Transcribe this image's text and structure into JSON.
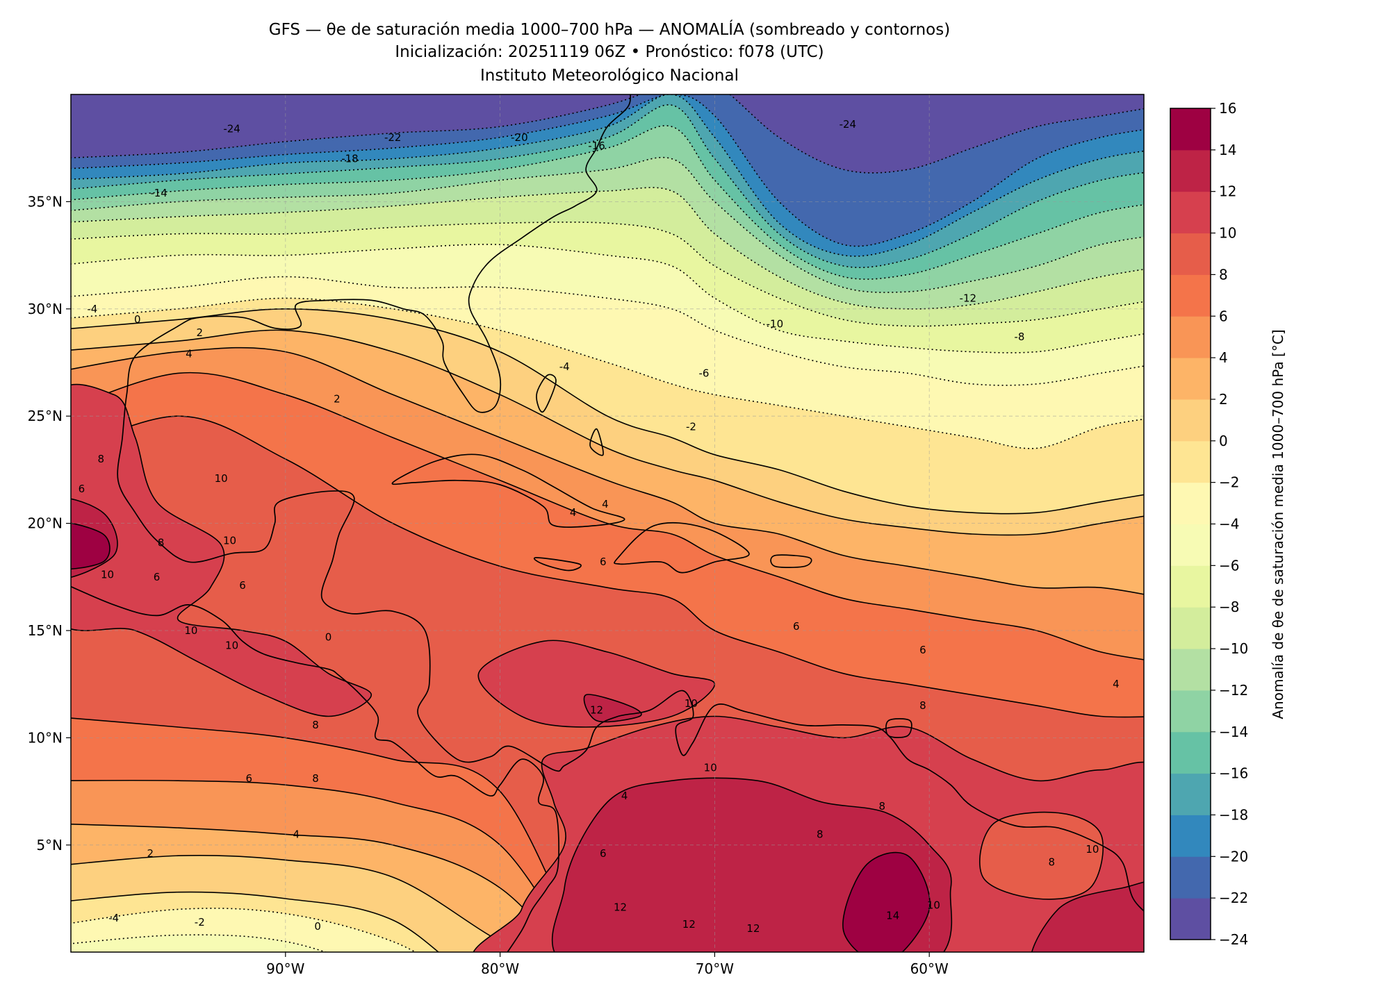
{
  "title": {
    "line1": "GFS — θe de saturación media 1000–700 hPa — ANOMALÍA (sombreado y contornos)",
    "line2": "Inicialización: 20251119 06Z   •   Pronóstico: f078 (UTC)",
    "line3": "Instituto Meteorológico Nacional"
  },
  "axes": {
    "x_ticks": [
      "90°W",
      "80°W",
      "70°W",
      "60°W"
    ],
    "x_tick_lons": [
      -90,
      -80,
      -70,
      -60
    ],
    "y_ticks": [
      "5°N",
      "10°N",
      "15°N",
      "20°N",
      "25°N",
      "30°N",
      "35°N"
    ],
    "y_tick_lats": [
      5,
      10,
      15,
      20,
      25,
      30,
      35
    ],
    "lon_range": [
      -100,
      -50
    ],
    "lat_range": [
      0,
      40
    ]
  },
  "colorbar": {
    "label": "Anomalía de θe de saturación media 1000–700 hPa [°C]",
    "levels": [
      -24,
      -22,
      -20,
      -18,
      -16,
      -14,
      -12,
      -10,
      -8,
      -6,
      -4,
      -2,
      0,
      2,
      4,
      6,
      8,
      10,
      12,
      14,
      16
    ],
    "ticks": [
      "−24",
      "−22",
      "−20",
      "−18",
      "−16",
      "−14",
      "−12",
      "−10",
      "−8",
      "−6",
      "−4",
      "−2",
      "0",
      "2",
      "4",
      "6",
      "8",
      "10",
      "12",
      "14",
      "16"
    ],
    "colors": [
      "#5e4fa2",
      "#4368ae",
      "#3288bd",
      "#4ea6b0",
      "#66c2a5",
      "#8fd3a4",
      "#b3e0a3",
      "#d3ed9c",
      "#e8f6a0",
      "#f7fbb4",
      "#fef8b2",
      "#fee593",
      "#fdd07f",
      "#fdb467",
      "#f99556",
      "#f4744a",
      "#e65d4a",
      "#d6404e",
      "#be2346",
      "#9e0142"
    ]
  },
  "contour_labels": [
    "-24",
    "-22",
    "-20",
    "-18",
    "-16",
    "-14",
    "-24",
    "-12",
    "-10",
    "-8",
    "-6",
    "-4",
    "-2",
    "-4",
    "0",
    "2",
    "4",
    "2",
    "10",
    "8",
    "6",
    "10",
    "8",
    "6",
    "10",
    "10",
    "10",
    "0",
    "6",
    "4",
    "4",
    "6",
    "6",
    "6",
    "8",
    "12",
    "10",
    "4",
    "8",
    "6",
    "8",
    "4",
    "2",
    "0",
    "-2",
    "-4",
    "4",
    "10",
    "6",
    "12",
    "12",
    "12",
    "14",
    "8",
    "8",
    "10",
    "10",
    "8"
  ]
}
